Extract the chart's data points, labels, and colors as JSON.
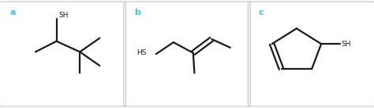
{
  "background": "#ffffff",
  "border_color": "#c8c8c8",
  "label_color": "#4db8e8",
  "line_color": "#1a1a1a",
  "line_width": 1.6,
  "panels": [
    {
      "label": "a"
    },
    {
      "label": "b"
    },
    {
      "label": "c"
    }
  ]
}
